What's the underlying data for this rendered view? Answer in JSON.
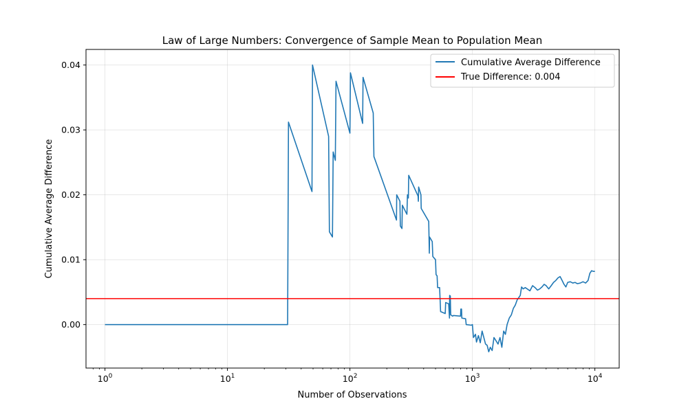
{
  "chart_data": {
    "type": "line",
    "title": "Law of Large Numbers: Convergence of Sample Mean to Population Mean",
    "xlabel": "Number of Observations",
    "ylabel": "Cumulative Average Difference",
    "xscale": "log",
    "xlim": [
      0.7,
      15800
    ],
    "ylim": [
      -0.0067,
      0.0424
    ],
    "grid": true,
    "legend_position": "top-right",
    "x_ticks": [
      {
        "value": 1,
        "base": "10",
        "exp": "0"
      },
      {
        "value": 10,
        "base": "10",
        "exp": "1"
      },
      {
        "value": 100,
        "base": "10",
        "exp": "2"
      },
      {
        "value": 1000,
        "base": "10",
        "exp": "3"
      },
      {
        "value": 10000,
        "base": "10",
        "exp": "4"
      }
    ],
    "y_ticks": [
      {
        "value": 0.0,
        "label": "0.00"
      },
      {
        "value": 0.01,
        "label": "0.01"
      },
      {
        "value": 0.02,
        "label": "0.02"
      },
      {
        "value": 0.03,
        "label": "0.03"
      },
      {
        "value": 0.04,
        "label": "0.04"
      }
    ],
    "series": [
      {
        "name": "Cumulative Average Difference",
        "color": "#1f77b4",
        "points": [
          [
            1,
            0
          ],
          [
            31,
            0
          ],
          [
            31.5,
            0.0312
          ],
          [
            49,
            0.0205
          ],
          [
            49.5,
            0.04
          ],
          [
            67,
            0.029
          ],
          [
            68,
            0.0143
          ],
          [
            72,
            0.0135
          ],
          [
            73,
            0.0266
          ],
          [
            76,
            0.0253
          ],
          [
            77,
            0.0375
          ],
          [
            100,
            0.0295
          ],
          [
            101,
            0.0388
          ],
          [
            127,
            0.031
          ],
          [
            128,
            0.0381
          ],
          [
            155,
            0.0326
          ],
          [
            157,
            0.0259
          ],
          [
            240,
            0.0161
          ],
          [
            241,
            0.02
          ],
          [
            256,
            0.019
          ],
          [
            258,
            0.0152
          ],
          [
            266,
            0.0148
          ],
          [
            268,
            0.0184
          ],
          [
            290,
            0.0171
          ],
          [
            292,
            0.017
          ],
          [
            295,
            0.02
          ],
          [
            300,
            0.0195
          ],
          [
            302,
            0.023
          ],
          [
            360,
            0.0198
          ],
          [
            362,
            0.019
          ],
          [
            364,
            0.0212
          ],
          [
            380,
            0.02
          ],
          [
            382,
            0.0179
          ],
          [
            440,
            0.0159
          ],
          [
            445,
            0.011
          ],
          [
            447,
            0.0135
          ],
          [
            470,
            0.0128
          ],
          [
            475,
            0.0105
          ],
          [
            500,
            0.01
          ],
          [
            505,
            0.0077
          ],
          [
            515,
            0.0075
          ],
          [
            520,
            0.0057
          ],
          [
            540,
            0.0057
          ],
          [
            550,
            0.002
          ],
          [
            600,
            0.0017
          ],
          [
            605,
            0.0034
          ],
          [
            640,
            0.0032
          ],
          [
            650,
            0.001
          ],
          [
            652,
            0.0045
          ],
          [
            660,
            0.0044
          ],
          [
            665,
            0.0015
          ],
          [
            690,
            0.0013
          ],
          [
            700,
            0.0014
          ],
          [
            800,
            0.0013
          ],
          [
            805,
            0.0024
          ],
          [
            815,
            0.0024
          ],
          [
            820,
            0.001
          ],
          [
            880,
            0.0009
          ],
          [
            890,
            0.0
          ],
          [
            980,
            -0.0001
          ],
          [
            1000,
            0.0
          ],
          [
            1020,
            -0.002
          ],
          [
            1060,
            -0.0015
          ],
          [
            1080,
            -0.0027
          ],
          [
            1120,
            -0.0017
          ],
          [
            1160,
            -0.0028
          ],
          [
            1200,
            -0.001
          ],
          [
            1240,
            -0.002
          ],
          [
            1280,
            -0.003
          ],
          [
            1320,
            -0.0032
          ],
          [
            1360,
            -0.0042
          ],
          [
            1400,
            -0.0035
          ],
          [
            1450,
            -0.004
          ],
          [
            1500,
            -0.002
          ],
          [
            1560,
            -0.0025
          ],
          [
            1620,
            -0.003
          ],
          [
            1680,
            -0.002
          ],
          [
            1740,
            -0.0035
          ],
          [
            1800,
            -0.001
          ],
          [
            1860,
            -0.0015
          ],
          [
            1920,
            0.0
          ],
          [
            2000,
            0.001
          ],
          [
            2080,
            0.0015
          ],
          [
            2160,
            0.0025
          ],
          [
            2240,
            0.003
          ],
          [
            2320,
            0.0038
          ],
          [
            2400,
            0.0042
          ],
          [
            2460,
            0.0045
          ],
          [
            2520,
            0.0058
          ],
          [
            2600,
            0.0055
          ],
          [
            2700,
            0.0057
          ],
          [
            2800,
            0.0055
          ],
          [
            2950,
            0.0052
          ],
          [
            3100,
            0.006
          ],
          [
            3250,
            0.0057
          ],
          [
            3400,
            0.0053
          ],
          [
            3550,
            0.0055
          ],
          [
            3700,
            0.0058
          ],
          [
            3850,
            0.0062
          ],
          [
            4000,
            0.006
          ],
          [
            4200,
            0.0055
          ],
          [
            4400,
            0.006
          ],
          [
            4600,
            0.0065
          ],
          [
            4800,
            0.0068
          ],
          [
            5000,
            0.0072
          ],
          [
            5200,
            0.0074
          ],
          [
            5400,
            0.0068
          ],
          [
            5600,
            0.0062
          ],
          [
            5800,
            0.0058
          ],
          [
            6000,
            0.0065
          ],
          [
            6300,
            0.0066
          ],
          [
            6600,
            0.0064
          ],
          [
            6900,
            0.0065
          ],
          [
            7200,
            0.0063
          ],
          [
            7600,
            0.0064
          ],
          [
            8000,
            0.0066
          ],
          [
            8400,
            0.0064
          ],
          [
            8800,
            0.0068
          ],
          [
            9100,
            0.0079
          ],
          [
            9400,
            0.0083
          ],
          [
            9700,
            0.0082
          ],
          [
            10000,
            0.0082
          ]
        ]
      },
      {
        "name": "True Difference: 0.004",
        "color": "#ff0000",
        "type": "hline",
        "y": 0.004
      }
    ]
  }
}
